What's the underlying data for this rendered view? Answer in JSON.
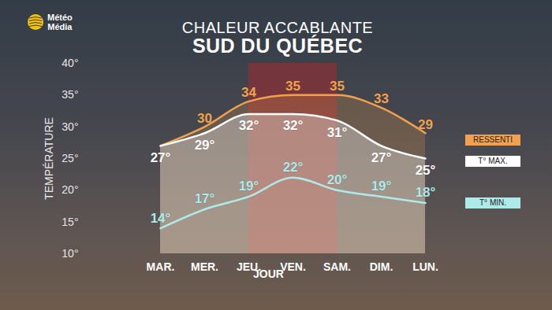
{
  "chart_data": {
    "type": "line",
    "title": "CHALEUR ACCABLANTE",
    "subtitle": "SUD DU QUÉBEC",
    "logo": [
      "Météo",
      "Média"
    ],
    "x_label": "JOUR",
    "y_label": "TEMPÉRATURE",
    "categories": [
      "MAR.",
      "MER.",
      "JEU.",
      "VEN.",
      "SAM.",
      "DIM.",
      "LUN."
    ],
    "highlight": [
      "JEU.",
      "SAM."
    ],
    "series": [
      {
        "name": "RESSENTI",
        "color": "#f2a24e",
        "values": [
          27,
          30,
          34,
          35,
          35,
          33,
          29
        ],
        "value_labels": [
          null,
          "30",
          "34",
          "35",
          "35",
          "33",
          "29"
        ]
      },
      {
        "name": "T° MAX.",
        "color": "#ffffff",
        "values": [
          27,
          29,
          32,
          32,
          31,
          27,
          25
        ],
        "value_labels": [
          "27°",
          "29°",
          "32°",
          "32°",
          "31°",
          "27°",
          "25°"
        ]
      },
      {
        "name": "T° MIN.",
        "color": "#aeeaea",
        "values": [
          14,
          17,
          19,
          22,
          20,
          19,
          18
        ],
        "value_labels": [
          "14°",
          "17°",
          "19°",
          "22°",
          "20°",
          "19°",
          "18°"
        ]
      }
    ],
    "ylim": [
      10,
      40
    ],
    "yticks": [
      {
        "value": 10,
        "label": "10°"
      },
      {
        "value": 15,
        "label": "15°"
      },
      {
        "value": 20,
        "label": "20°"
      },
      {
        "value": 25,
        "label": "25°"
      },
      {
        "value": 30,
        "label": "30°"
      },
      {
        "value": 35,
        "label": "35°"
      },
      {
        "value": 40,
        "label": "40°"
      }
    ],
    "grid": false,
    "legend": "right",
    "data_labels": true,
    "marker": "none",
    "line_style": "solid"
  }
}
